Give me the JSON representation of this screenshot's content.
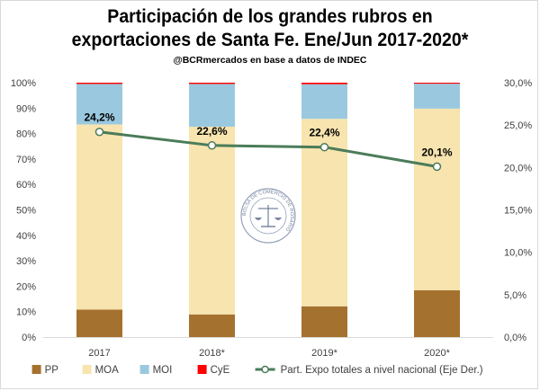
{
  "chart_data": {
    "type": "bar",
    "stacked": true,
    "title_line1": "Participación de los grandes rubros en",
    "title_line2": "exportaciones de Santa Fe. Ene/Jun 2017-2020*",
    "subtitle": "@BCRmercados en base a datos de INDEC",
    "categories": [
      "2017",
      "2018*",
      "2019*",
      "2020*"
    ],
    "series": [
      {
        "name": "PP",
        "color": "#a5712e",
        "values": [
          10.8,
          8.9,
          12.1,
          18.4
        ]
      },
      {
        "name": "MOA",
        "color": "#f7e4ae",
        "values": [
          72.8,
          73.8,
          73.7,
          71.4
        ]
      },
      {
        "name": "MOI",
        "color": "#9ac9df",
        "values": [
          15.9,
          16.8,
          13.6,
          9.8
        ]
      },
      {
        "name": "CyE",
        "color": "#ff0000",
        "values": [
          0.5,
          0.5,
          0.6,
          0.4
        ]
      }
    ],
    "line_series": {
      "name": "Part. Expo totales a nivel nacional (Eje Der.)",
      "color": "#4a7c59",
      "values": [
        24.2,
        22.6,
        22.4,
        20.1
      ],
      "labels": [
        "24,2%",
        "22,6%",
        "22,4%",
        "20,1%"
      ]
    },
    "y_left": {
      "min": 0,
      "max": 100,
      "ticks": [
        "0%",
        "10%",
        "20%",
        "30%",
        "40%",
        "50%",
        "60%",
        "70%",
        "80%",
        "90%",
        "100%"
      ]
    },
    "y_right": {
      "min": 0,
      "max": 30,
      "ticks": [
        "0,0%",
        "5,0%",
        "10,0%",
        "15,0%",
        "20,0%",
        "25,0%",
        "30,0%"
      ]
    },
    "legend_position": "bottom",
    "watermark_text": "BOLSA DE COMERCIO DE ROSARIO"
  }
}
